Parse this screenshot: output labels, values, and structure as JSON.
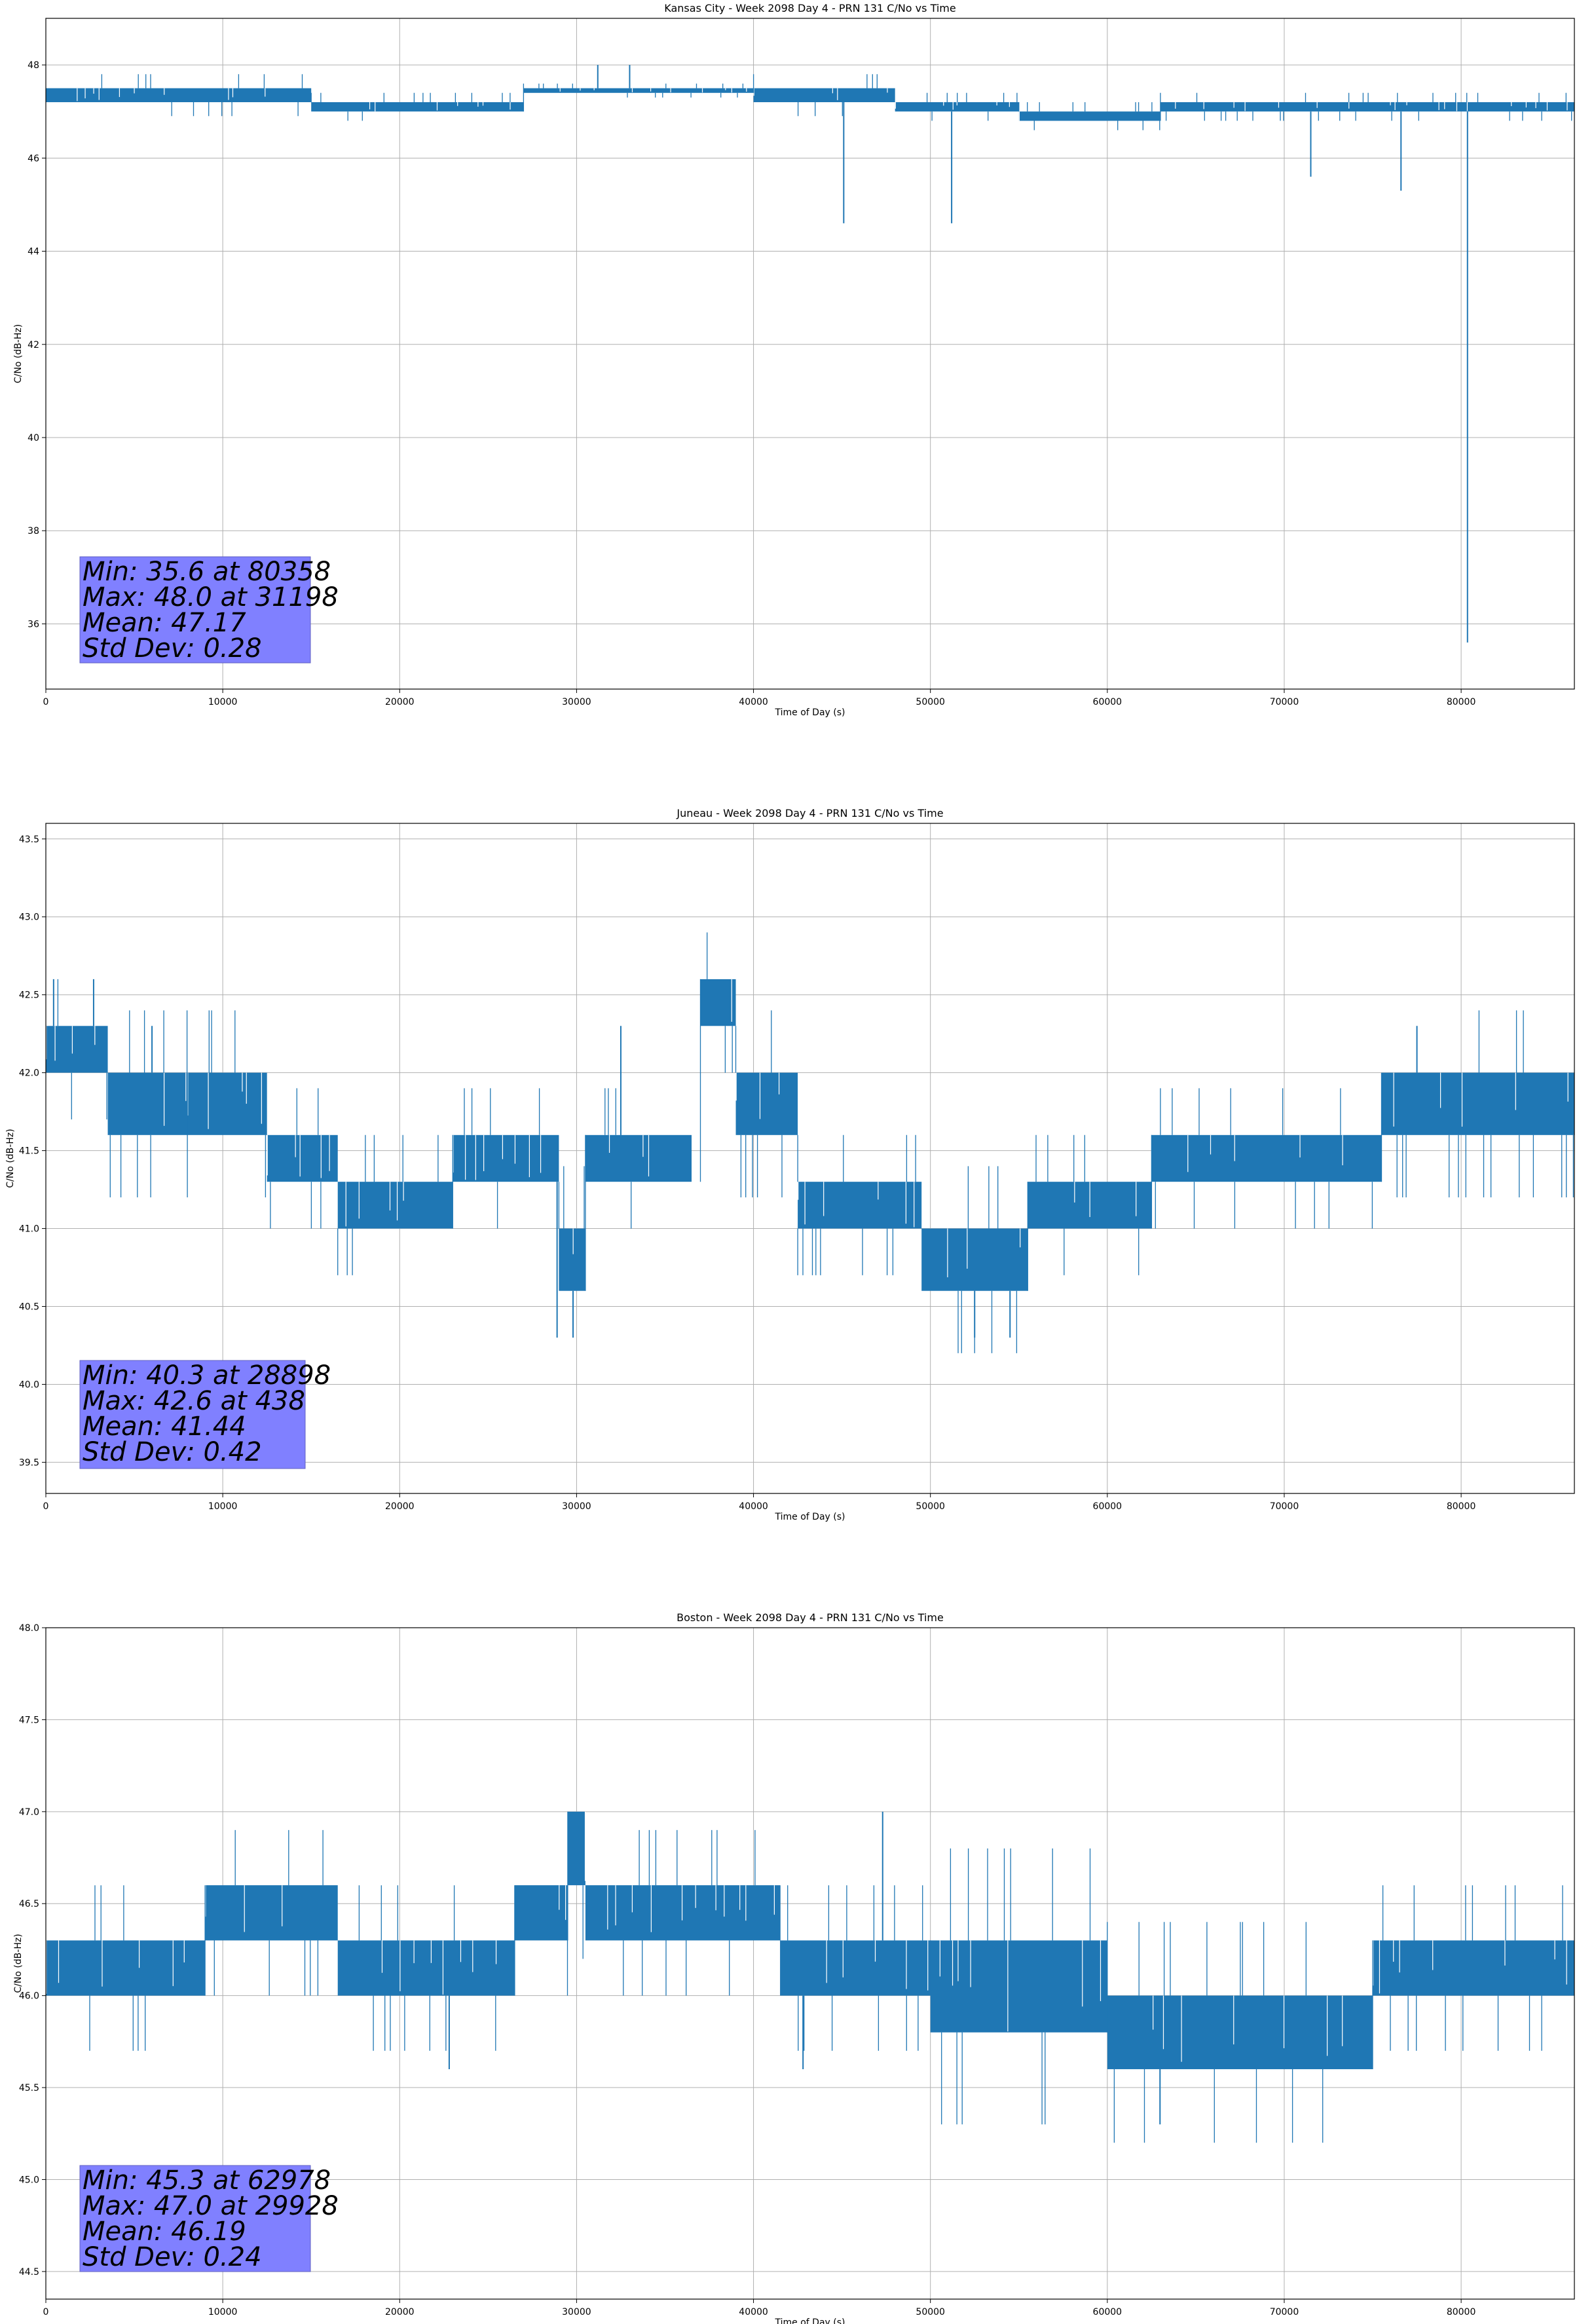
{
  "figure": {
    "background": "#ffffff",
    "line_color": "#1f77b4",
    "grid_color": "#b0b0b0",
    "stats_box_color": "#8080ff"
  },
  "chart_data": [
    {
      "type": "line",
      "title": "Kansas City - Week 2098 Day 4 - PRN 131 C/No vs Time",
      "xlabel": "Time of Day (s)",
      "ylabel": "C/No (dB-Hz)",
      "xlim": [
        0,
        86400
      ],
      "ylim": [
        34.6,
        49.0
      ],
      "xticks": [
        0,
        10000,
        20000,
        30000,
        40000,
        50000,
        60000,
        70000,
        80000
      ],
      "yticks": [
        36,
        38,
        40,
        42,
        44,
        46,
        48
      ],
      "grid": true,
      "series": [
        {
          "color": "#1f77b4",
          "bands": [
            {
              "x": [
                0,
                15000
              ],
              "y": [
                47.2,
                47.5
              ]
            },
            {
              "x": [
                15000,
                27000
              ],
              "y": [
                47.0,
                47.2
              ]
            },
            {
              "x": [
                27000,
                40000
              ],
              "y": [
                47.4,
                47.5
              ]
            },
            {
              "x": [
                40000,
                48000
              ],
              "y": [
                47.2,
                47.5
              ]
            },
            {
              "x": [
                48000,
                55000
              ],
              "y": [
                47.0,
                47.2
              ]
            },
            {
              "x": [
                55000,
                63000
              ],
              "y": [
                46.8,
                47.0
              ]
            },
            {
              "x": [
                63000,
                86400
              ],
              "y": [
                47.0,
                47.2
              ]
            }
          ],
          "spikes": [
            {
              "x": 31198,
              "y": 48.0
            },
            {
              "x": 33000,
              "y": 48.0
            },
            {
              "x": 45100,
              "y": 44.6
            },
            {
              "x": 51200,
              "y": 44.6
            },
            {
              "x": 71500,
              "y": 45.6
            },
            {
              "x": 76600,
              "y": 45.3
            },
            {
              "x": 80358,
              "y": 35.6
            }
          ]
        }
      ],
      "stats": [
        "Min: 35.6 at 80358",
        "Max: 48.0 at 31198",
        "Mean: 47.17",
        "Std Dev: 0.28"
      ]
    },
    {
      "type": "line",
      "title": "Juneau - Week 2098 Day 4 - PRN 131 C/No vs Time",
      "xlabel": "Time of Day (s)",
      "ylabel": "C/No (dB-Hz)",
      "xlim": [
        0,
        86400
      ],
      "ylim": [
        39.3,
        43.6
      ],
      "xticks": [
        0,
        10000,
        20000,
        30000,
        40000,
        50000,
        60000,
        70000,
        80000
      ],
      "yticks": [
        39.5,
        40.0,
        40.5,
        41.0,
        41.5,
        42.0,
        42.5,
        43.0,
        43.5
      ],
      "yticklabels": [
        "39.5",
        "40.0",
        "40.5",
        "41.0",
        "41.5",
        "42.0",
        "42.5",
        "43.0",
        "43.5"
      ],
      "grid": true,
      "series": [
        {
          "color": "#1f77b4",
          "bands": [
            {
              "x": [
                0,
                3500
              ],
              "y": [
                42.0,
                42.3
              ]
            },
            {
              "x": [
                3500,
                8000
              ],
              "y": [
                41.6,
                42.0
              ]
            },
            {
              "x": [
                8000,
                12500
              ],
              "y": [
                41.6,
                42.0
              ]
            },
            {
              "x": [
                12500,
                16500
              ],
              "y": [
                41.3,
                41.6
              ]
            },
            {
              "x": [
                16500,
                23000
              ],
              "y": [
                41.0,
                41.3
              ]
            },
            {
              "x": [
                23000,
                29000
              ],
              "y": [
                41.3,
                41.6
              ]
            },
            {
              "x": [
                29000,
                30500
              ],
              "y": [
                40.6,
                41.0
              ]
            },
            {
              "x": [
                30500,
                36500
              ],
              "y": [
                41.3,
                41.6
              ]
            },
            {
              "x": [
                37000,
                39000
              ],
              "y": [
                42.3,
                42.6
              ]
            },
            {
              "x": [
                39000,
                42500
              ],
              "y": [
                41.6,
                42.0
              ]
            },
            {
              "x": [
                42500,
                49500
              ],
              "y": [
                41.0,
                41.3
              ]
            },
            {
              "x": [
                49500,
                55500
              ],
              "y": [
                40.6,
                41.0
              ]
            },
            {
              "x": [
                55500,
                62500
              ],
              "y": [
                41.0,
                41.3
              ]
            },
            {
              "x": [
                62500,
                75500
              ],
              "y": [
                41.3,
                41.6
              ]
            },
            {
              "x": [
                75500,
                86400
              ],
              "y": [
                41.6,
                42.0
              ]
            }
          ],
          "spikes": [
            {
              "x": 28898,
              "y": 40.3
            },
            {
              "x": 29800,
              "y": 40.3
            },
            {
              "x": 52500,
              "y": 40.3
            },
            {
              "x": 54500,
              "y": 40.3
            },
            {
              "x": 438,
              "y": 42.6
            },
            {
              "x": 2700,
              "y": 42.6
            },
            {
              "x": 6000,
              "y": 42.3
            },
            {
              "x": 32500,
              "y": 42.3
            },
            {
              "x": 77500,
              "y": 42.3
            }
          ]
        }
      ],
      "stats": [
        "Min: 40.3 at 28898",
        "Max: 42.6 at 438",
        "Mean: 41.44",
        "Std Dev: 0.42"
      ]
    },
    {
      "type": "line",
      "title": "Boston - Week 2098 Day 4 - PRN 131 C/No vs Time",
      "xlabel": "Time of Day (s)",
      "ylabel": "C/No (dB-Hz)",
      "xlim": [
        0,
        86400
      ],
      "ylim": [
        44.35,
        48.0
      ],
      "xticks": [
        0,
        10000,
        20000,
        30000,
        40000,
        50000,
        60000,
        70000,
        80000
      ],
      "yticks": [
        44.5,
        45.0,
        45.5,
        46.0,
        46.5,
        47.0,
        47.5,
        48.0
      ],
      "yticklabels": [
        "44.5",
        "45.0",
        "45.5",
        "46.0",
        "46.5",
        "47.0",
        "47.5",
        "48.0"
      ],
      "grid": true,
      "series": [
        {
          "color": "#1f77b4",
          "bands": [
            {
              "x": [
                0,
                9000
              ],
              "y": [
                46.0,
                46.3
              ]
            },
            {
              "x": [
                9000,
                16500
              ],
              "y": [
                46.3,
                46.6
              ]
            },
            {
              "x": [
                16500,
                26500
              ],
              "y": [
                46.0,
                46.3
              ]
            },
            {
              "x": [
                26500,
                29500
              ],
              "y": [
                46.3,
                46.6
              ]
            },
            {
              "x": [
                29500,
                30500
              ],
              "y": [
                46.6,
                47.0
              ]
            },
            {
              "x": [
                30500,
                41500
              ],
              "y": [
                46.3,
                46.6
              ]
            },
            {
              "x": [
                41500,
                50000
              ],
              "y": [
                46.0,
                46.3
              ]
            },
            {
              "x": [
                50000,
                60000
              ],
              "y": [
                45.8,
                46.3
              ]
            },
            {
              "x": [
                60000,
                75000
              ],
              "y": [
                45.6,
                46.0
              ]
            },
            {
              "x": [
                75000,
                86400
              ],
              "y": [
                46.0,
                46.3
              ]
            }
          ],
          "spikes": [
            {
              "x": 29928,
              "y": 47.0
            },
            {
              "x": 47300,
              "y": 47.0
            },
            {
              "x": 22800,
              "y": 45.6
            },
            {
              "x": 42800,
              "y": 45.6
            },
            {
              "x": 62978,
              "y": 45.3
            }
          ]
        }
      ],
      "stats": [
        "Min: 45.3 at 62978",
        "Max: 47.0 at 29928",
        "Mean: 46.19",
        "Std Dev: 0.24"
      ]
    }
  ]
}
